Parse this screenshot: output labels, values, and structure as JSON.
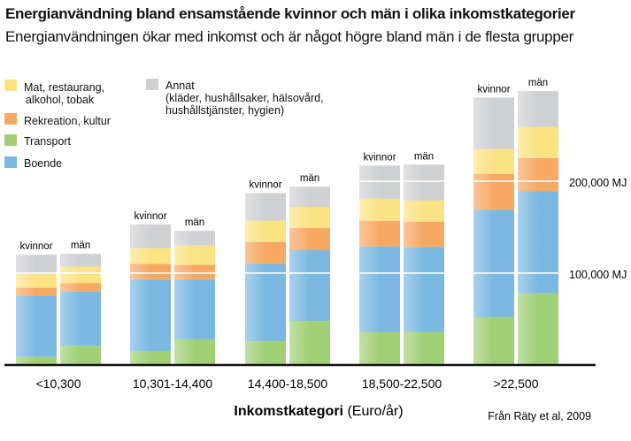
{
  "chart_data": {
    "type": "bar",
    "stacked": true,
    "title": "Energianvändning bland ensamstående kvinnor och män i olika inkomstkategorier",
    "subtitle": "Energianvändningen ökar med inkomst och är något högre bland män i de flesta grupper",
    "xlabel_bold": "Inkomstkategori",
    "xlabel_rest": " (Euro/år)",
    "source": "Från Räty et al, 2009",
    "unit": "MJ",
    "ylim": [
      0,
      300000
    ],
    "y_ticks": [
      {
        "value": 100000,
        "label": "100,000 MJ"
      },
      {
        "value": 200000,
        "label": "200,000 MJ"
      }
    ],
    "gridlines": true,
    "legend_position": "top-left",
    "categories": [
      "<10,300",
      "10,301-14,400",
      "14,400-18,500",
      "18,500-22,500",
      ">22,500"
    ],
    "bar_labels": [
      "kvinnor",
      "män"
    ],
    "series": [
      {
        "name": "Transport",
        "color": "#a0cf75",
        "kvinnor": [
          9000,
          15000,
          26000,
          36000,
          52000
        ],
        "man": [
          21000,
          28000,
          48000,
          36000,
          78000
        ]
      },
      {
        "name": "Boende",
        "color": "#7ab8e2",
        "kvinnor": [
          66000,
          78000,
          84000,
          93000,
          117000
        ],
        "man": [
          59000,
          65000,
          77000,
          92000,
          111000
        ]
      },
      {
        "name": "Rekreation, kultur",
        "color": "#f7a863",
        "kvinnor": [
          9000,
          17000,
          24000,
          28000,
          39000
        ],
        "man": [
          9000,
          16000,
          24000,
          28000,
          36000
        ]
      },
      {
        "name": "Mat, restaurang, alkohol, tobak",
        "color": "#fbe283",
        "kvinnor": [
          15000,
          17000,
          23000,
          24000,
          27000
        ],
        "man": [
          18000,
          21000,
          23000,
          23000,
          34000
        ]
      },
      {
        "name": "Annat (kläder, hushållssaker, hälsovård, hushållstjänster, hygien)",
        "color": "#cfd0d2",
        "kvinnor": [
          21000,
          26000,
          30000,
          36000,
          56000
        ],
        "man": [
          14000,
          16000,
          22000,
          39000,
          39000
        ]
      }
    ]
  },
  "legend": {
    "mat_line1": "Mat, restaurang,",
    "mat_line2": "alkohol, tobak",
    "rekreation": "Rekreation, kultur",
    "transport": "Transport",
    "boende": "Boende",
    "annat_line1": "Annat",
    "annat_line2": "(kläder, hushållsaker, hälsovård,",
    "annat_line3": "hushållstjänster, hygien)"
  }
}
